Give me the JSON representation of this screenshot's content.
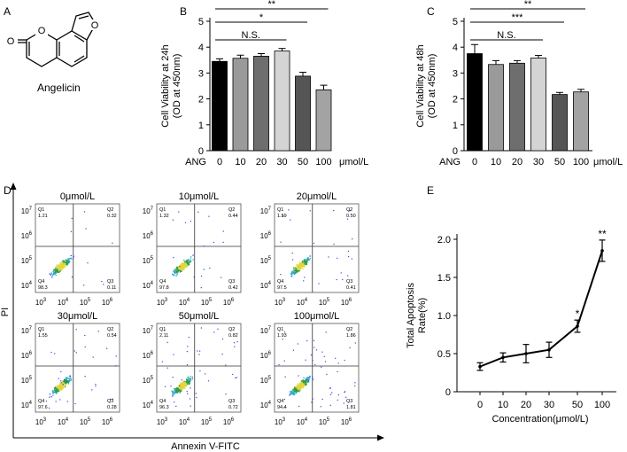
{
  "panels": {
    "A": {
      "letter": "A",
      "compound": "Angelicin",
      "atom_label": "O",
      "carbonyl_label": "O"
    },
    "D": {
      "letter": "D",
      "ylabel": "PI",
      "xlabel": "Annexin V-FITC",
      "quadrant_names": [
        "Q1",
        "Q2",
        "Q3",
        "Q4"
      ],
      "y_ticks": [
        {
          "base": "10",
          "exp": "7"
        },
        {
          "base": "10",
          "exp": "6"
        },
        {
          "base": "10",
          "exp": "5"
        },
        {
          "base": "10",
          "exp": "4"
        }
      ],
      "x_ticks": [
        {
          "base": "10",
          "exp": "3"
        },
        {
          "base": "10",
          "exp": "4"
        },
        {
          "base": "10",
          "exp": "5"
        },
        {
          "base": "10",
          "exp": "6"
        }
      ],
      "plots": [
        {
          "title": "0μmol/L",
          "q1": "1.21",
          "q2": "0.32",
          "q3": "0.11",
          "q4": "98.3"
        },
        {
          "title": "10μmol/L",
          "q1": "1.32",
          "q2": "0.44",
          "q3": "0.42",
          "q4": "97.8"
        },
        {
          "title": "20μmol/L",
          "q1": "1.59",
          "q2": "0.50",
          "q3": "0.41",
          "q4": "97.5"
        },
        {
          "title": "30μmol/L",
          "q1": "1.55",
          "q2": "0.54",
          "q3": "0.28",
          "q4": "97.6"
        },
        {
          "title": "50μmol/L",
          "q1": "2.11",
          "q2": "0.82",
          "q3": "0.72",
          "q4": "96.3"
        },
        {
          "title": "100μmol/L",
          "q1": "1.93",
          "q2": "1.86",
          "q3": "1.81",
          "q4": "94.4"
        }
      ]
    }
  },
  "chart_data": [
    {
      "panel": "B",
      "type": "bar",
      "ylabel_line1": "Cell Viability at 24h",
      "ylabel_line2": "(OD at 450nm)",
      "x_prefix": "ANG",
      "x_unit": "μmol/L",
      "categories": [
        "0",
        "10",
        "20",
        "30",
        "50",
        "100"
      ],
      "values": [
        3.45,
        3.57,
        3.65,
        3.85,
        2.88,
        2.35
      ],
      "errors": [
        0.1,
        0.12,
        0.1,
        0.1,
        0.15,
        0.18
      ],
      "bar_colors": [
        "#000000",
        "#9a9a9a",
        "#6e6e6e",
        "#d4d4d4",
        "#555555",
        "#a3a3a3"
      ],
      "ylim": [
        0,
        5
      ],
      "yticks": [
        "0",
        "1",
        "2",
        "3",
        "4",
        "5"
      ],
      "significance": [
        {
          "label": "**",
          "from": 0,
          "to": 5
        },
        {
          "label": "*",
          "from": 0,
          "to": 4
        },
        {
          "label": "N.S.",
          "from": 0,
          "to": 3
        }
      ]
    },
    {
      "panel": "C",
      "type": "bar",
      "ylabel_line1": "Cell Viability at 48h",
      "ylabel_line2": "(OD at 450nm)",
      "x_prefix": "ANG",
      "x_unit": "μmol/L",
      "categories": [
        "0",
        "10",
        "20",
        "30",
        "50",
        "100"
      ],
      "values": [
        3.75,
        3.33,
        3.38,
        3.58,
        2.17,
        2.27
      ],
      "errors": [
        0.35,
        0.15,
        0.1,
        0.1,
        0.08,
        0.1
      ],
      "bar_colors": [
        "#000000",
        "#9a9a9a",
        "#6e6e6e",
        "#d4d4d4",
        "#555555",
        "#a3a3a3"
      ],
      "ylim": [
        0,
        5
      ],
      "yticks": [
        "0",
        "1",
        "2",
        "3",
        "4",
        "5"
      ],
      "significance": [
        {
          "label": "**",
          "from": 0,
          "to": 5
        },
        {
          "label": "***",
          "from": 0,
          "to": 4
        },
        {
          "label": "N.S.",
          "from": 0,
          "to": 3
        }
      ]
    },
    {
      "panel": "E",
      "type": "line",
      "xlabel": "Concentration(μmol/L)",
      "ylabel_line1": "Total Apoptosis",
      "ylabel_line2": "Rate(%)",
      "categories": [
        "0",
        "10",
        "20",
        "30",
        "50",
        "100"
      ],
      "values": [
        0.33,
        0.45,
        0.5,
        0.55,
        0.86,
        1.85
      ],
      "errors": [
        0.05,
        0.06,
        0.12,
        0.1,
        0.08,
        0.14
      ],
      "annotations": [
        "",
        "",
        "",
        "",
        "*",
        "**"
      ],
      "ylim": [
        0,
        2.0
      ],
      "yticks": [
        "0",
        "0.5",
        "1.0",
        "1.5",
        "2.0"
      ]
    }
  ]
}
